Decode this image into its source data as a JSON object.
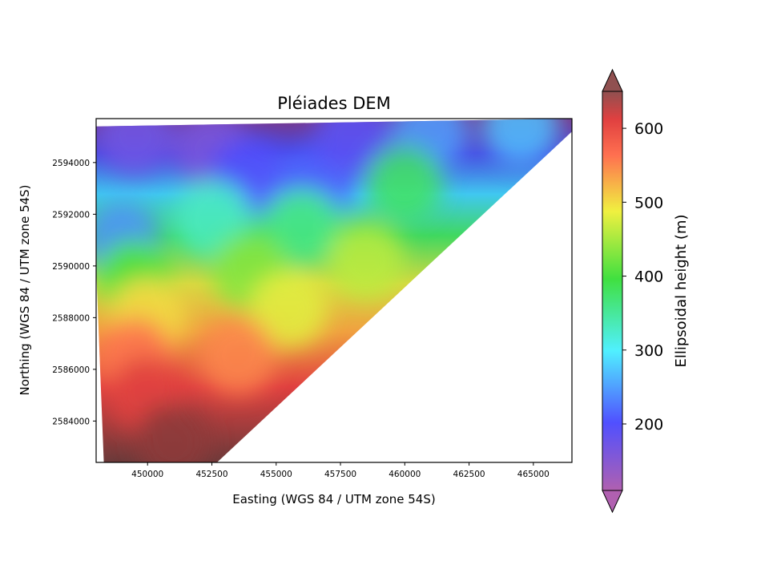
{
  "chart_data": {
    "type": "heatmap",
    "title": "Pléiades DEM",
    "xlabel": "Easting (WGS 84 / UTM zone 54S)",
    "ylabel": "Northing (WGS 84 / UTM zone 54S)",
    "xlim": [
      448000,
      466500
    ],
    "ylim": [
      2582400,
      2595700
    ],
    "xticks": [
      450000,
      452500,
      455000,
      457500,
      460000,
      462500,
      465000
    ],
    "xtick_labels": [
      "450000",
      "452500",
      "455000",
      "457500",
      "460000",
      "462500",
      "465000"
    ],
    "yticks": [
      2584000,
      2586000,
      2588000,
      2590000,
      2592000,
      2594000
    ],
    "ytick_labels": [
      "2584000",
      "2586000",
      "2588000",
      "2590000",
      "2592000",
      "2594000"
    ],
    "colorbar": {
      "label": "Ellipsoidal height (m)",
      "range": [
        110,
        650
      ],
      "ticks": [
        200,
        300,
        400,
        500,
        600
      ],
      "tick_labels": [
        "200",
        "300",
        "400",
        "500",
        "600"
      ],
      "extend": "both",
      "colormap": [
        "#a040a0",
        "#4040ff",
        "#40e0ff",
        "#30e040",
        "#e0e040",
        "#ff8040",
        "#e03030",
        "#703030"
      ]
    },
    "coverage_polygon": [
      [
        448000,
        2595400
      ],
      [
        466500,
        2595700
      ],
      [
        466500,
        2595200
      ],
      [
        452700,
        2582400
      ],
      [
        448300,
        2582400
      ],
      [
        448000,
        2590000
      ]
    ],
    "elevation_samples": [
      {
        "easting": 449500,
        "northing": 2595000,
        "height": 170
      },
      {
        "easting": 452500,
        "northing": 2594500,
        "height": 160
      },
      {
        "easting": 454000,
        "northing": 2593500,
        "height": 200
      },
      {
        "easting": 456500,
        "northing": 2593200,
        "height": 210
      },
      {
        "easting": 458000,
        "northing": 2595000,
        "height": 190
      },
      {
        "easting": 461000,
        "northing": 2595200,
        "height": 250
      },
      {
        "easting": 464500,
        "northing": 2595400,
        "height": 270
      },
      {
        "easting": 460000,
        "northing": 2593200,
        "height": 380
      },
      {
        "easting": 449000,
        "northing": 2591000,
        "height": 240
      },
      {
        "easting": 452500,
        "northing": 2591800,
        "height": 330
      },
      {
        "easting": 456000,
        "northing": 2591500,
        "height": 360
      },
      {
        "easting": 449500,
        "northing": 2589500,
        "height": 400
      },
      {
        "easting": 454000,
        "northing": 2589800,
        "height": 430
      },
      {
        "easting": 458500,
        "northing": 2590200,
        "height": 460
      },
      {
        "easting": 450000,
        "northing": 2588000,
        "height": 500
      },
      {
        "easting": 455500,
        "northing": 2588300,
        "height": 480
      },
      {
        "easting": 449500,
        "northing": 2586500,
        "height": 560
      },
      {
        "easting": 453500,
        "northing": 2586500,
        "height": 550
      },
      {
        "easting": 450000,
        "northing": 2585000,
        "height": 610
      },
      {
        "easting": 451000,
        "northing": 2583200,
        "height": 640
      }
    ]
  }
}
